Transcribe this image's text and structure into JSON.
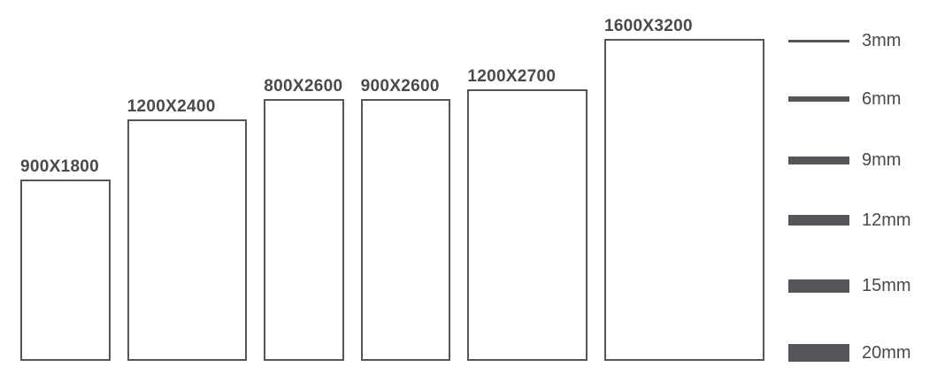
{
  "figure": {
    "background_color": "#ffffff",
    "line_color": "#55565a",
    "text_color": "#4a4a4b"
  },
  "panels": [
    {
      "label": "900X1800",
      "width_mm": 900,
      "height_mm": 1800
    },
    {
      "label": "1200X2400",
      "width_mm": 1200,
      "height_mm": 2400
    },
    {
      "label": "800X2600",
      "width_mm": 800,
      "height_mm": 2600
    },
    {
      "label": "900X2600",
      "width_mm": 900,
      "height_mm": 2600
    },
    {
      "label": "1200X2700",
      "width_mm": 1200,
      "height_mm": 2700
    },
    {
      "label": "1600X3200",
      "width_mm": 1600,
      "height_mm": 3200
    }
  ],
  "thicknesses": [
    {
      "label": "3mm",
      "mm": 3
    },
    {
      "label": "6mm",
      "mm": 6
    },
    {
      "label": "9mm",
      "mm": 9
    },
    {
      "label": "12mm",
      "mm": 12
    },
    {
      "label": "15mm",
      "mm": 15
    },
    {
      "label": "20mm",
      "mm": 20
    }
  ]
}
